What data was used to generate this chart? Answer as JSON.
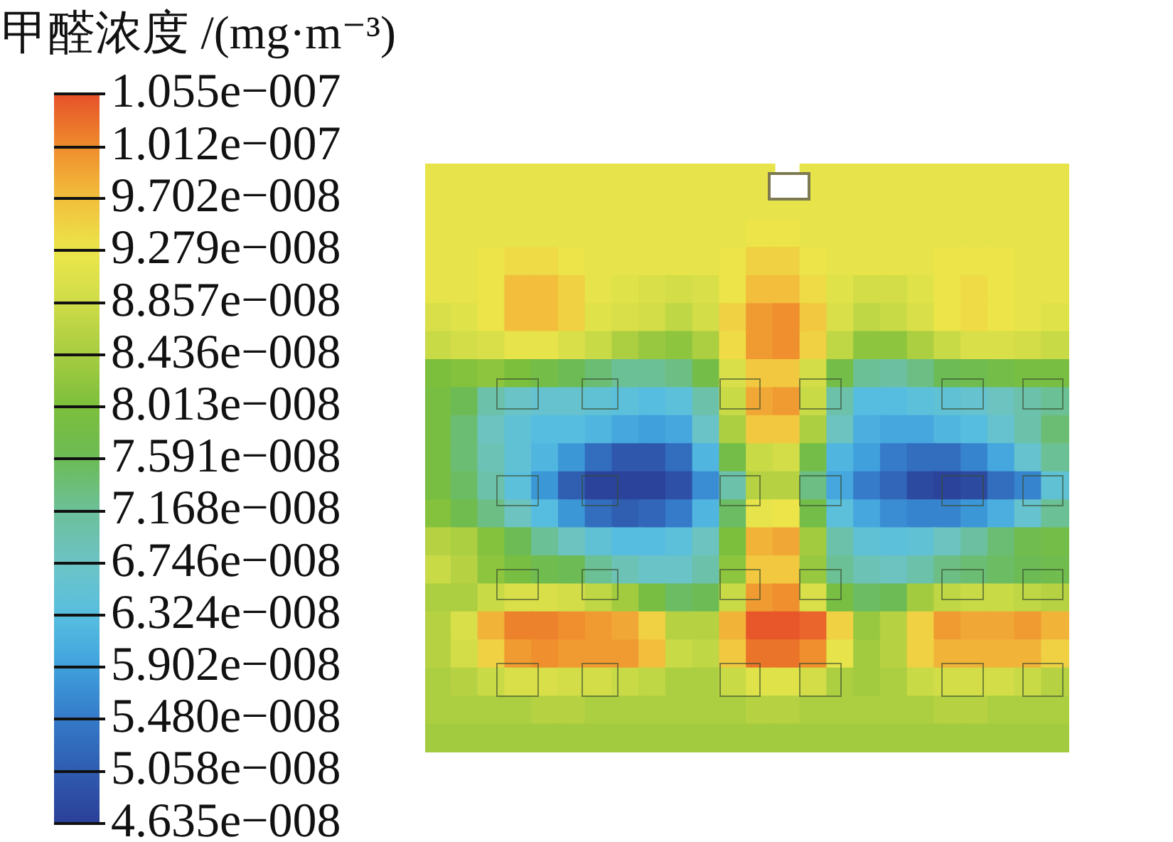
{
  "chart_data": {
    "type": "heatmap",
    "clabel": "甲醛浓度 /(mg·m⁻³)",
    "categories": [
      null,
      null,
      null,
      null,
      null,
      null,
      null,
      null,
      null,
      null,
      null,
      null,
      null,
      null,
      null,
      null,
      null,
      null,
      null,
      null,
      null,
      null,
      null,
      null
    ],
    "y_categories": [
      null,
      null,
      null,
      null,
      null,
      null,
      null,
      null,
      null,
      null,
      null,
      null,
      null,
      null,
      null,
      null,
      null,
      null,
      null,
      null,
      null
    ],
    "cells": [
      [
        9.2e-08,
        9.2e-08,
        9.2e-08,
        9.2e-08,
        9.2e-08,
        9.2e-08,
        9.2e-08,
        9.2e-08,
        9.2e-08,
        9.2e-08,
        9.2e-08,
        9.2e-08,
        9.2e-08,
        null,
        9.2e-08,
        9.2e-08,
        9.2e-08,
        9.2e-08,
        9.2e-08,
        9.2e-08,
        9.2e-08,
        9.2e-08,
        9.2e-08,
        9.2e-08
      ],
      [
        9.2e-08,
        9.2e-08,
        9.2e-08,
        9.2e-08,
        9.2e-08,
        9.2e-08,
        9.2e-08,
        9.2e-08,
        9.2e-08,
        9.2e-08,
        9.2e-08,
        9.2e-08,
        9.2e-08,
        9.2e-08,
        9.2e-08,
        9.2e-08,
        9.2e-08,
        9.2e-08,
        9.2e-08,
        9.2e-08,
        9.2e-08,
        9.2e-08,
        9.2e-08,
        9.2e-08
      ],
      [
        9.2e-08,
        9.2e-08,
        9.2e-08,
        9.2e-08,
        9.2e-08,
        9.2e-08,
        9.2e-08,
        9.2e-08,
        9.2e-08,
        9.2e-08,
        9.2e-08,
        9.2e-08,
        9.3e-08,
        9.3e-08,
        9.2e-08,
        9.2e-08,
        9.2e-08,
        9.2e-08,
        9.2e-08,
        9.2e-08,
        9.2e-08,
        9.2e-08,
        9.2e-08,
        9.2e-08
      ],
      [
        9.2e-08,
        9.2e-08,
        9.3e-08,
        9.4e-08,
        9.4e-08,
        9.3e-08,
        9.2e-08,
        9.2e-08,
        9.2e-08,
        9.2e-08,
        9.2e-08,
        9.3e-08,
        9.5e-08,
        9.5e-08,
        9.3e-08,
        9.2e-08,
        9.2e-08,
        9.2e-08,
        9.2e-08,
        9.3e-08,
        9.3e-08,
        9.3e-08,
        9.2e-08,
        9.2e-08
      ],
      [
        9.2e-08,
        9.2e-08,
        9.3e-08,
        9.7e-08,
        9.7e-08,
        9.5e-08,
        9.2e-08,
        9.1e-08,
        9e-08,
        8.9e-08,
        9e-08,
        9.3e-08,
        9.7e-08,
        9.7e-08,
        9.4e-08,
        9.1e-08,
        8.9e-08,
        8.9e-08,
        9.1e-08,
        9.3e-08,
        9.4e-08,
        9.3e-08,
        9.2e-08,
        9.2e-08
      ],
      [
        9e-08,
        9.1e-08,
        9.3e-08,
        9.7e-08,
        9.7e-08,
        9.5e-08,
        9.1e-08,
        9e-08,
        8.9e-08,
        8.7e-08,
        8.9e-08,
        9.5e-08,
        1e-07,
        1.01e-07,
        9.6e-08,
        9e-08,
        8.7e-08,
        8.8e-08,
        9e-08,
        9.3e-08,
        9.4e-08,
        9.3e-08,
        9.2e-08,
        9.1e-08
      ],
      [
        8.8e-08,
        8.9e-08,
        9e-08,
        9.2e-08,
        9.2e-08,
        9e-08,
        8.8e-08,
        8.5e-08,
        8.3e-08,
        8.2e-08,
        8.5e-08,
        9.4e-08,
        1e-07,
        1.01e-07,
        9.5e-08,
        8.7e-08,
        8.2e-08,
        8.2e-08,
        8.5e-08,
        8.8e-08,
        9e-08,
        9e-08,
        8.9e-08,
        8.8e-08
      ],
      [
        8e-08,
        8.1e-08,
        8.2e-08,
        8e-08,
        7.8e-08,
        7.6e-08,
        7.4e-08,
        7.2e-08,
        7.2e-08,
        7.3e-08,
        7.8e-08,
        9e-08,
        9.6e-08,
        9.6e-08,
        8.9e-08,
        7.8e-08,
        7.2e-08,
        7.1e-08,
        7.3e-08,
        7.6e-08,
        7.7e-08,
        7.8e-08,
        7.9e-08,
        7.9e-08
      ],
      [
        7.9e-08,
        7.6e-08,
        7e-08,
        6.7e-08,
        6.6e-08,
        6.6e-08,
        6.5e-08,
        6.4e-08,
        6.3e-08,
        6.4e-08,
        7e-08,
        8.8e-08,
        9.9e-08,
        1e-07,
        8.8e-08,
        7e-08,
        6.3e-08,
        6.3e-08,
        6.4e-08,
        6.5e-08,
        6.6e-08,
        6.8e-08,
        7e-08,
        7.2e-08
      ],
      [
        7.9e-08,
        7.4e-08,
        6.8e-08,
        6.5e-08,
        6.3e-08,
        6.3e-08,
        6.2e-08,
        6e-08,
        5.9e-08,
        6e-08,
        6.7e-08,
        8.5e-08,
        9.6e-08,
        9.6e-08,
        8.5e-08,
        6.8e-08,
        6.1e-08,
        6e-08,
        6e-08,
        6.2e-08,
        6.3e-08,
        6.6e-08,
        7e-08,
        7.4e-08
      ],
      [
        7.9e-08,
        7.4e-08,
        6.9e-08,
        6.5e-08,
        6.2e-08,
        5.8e-08,
        5.3e-08,
        5e-08,
        5e-08,
        5.3e-08,
        6.2e-08,
        7.8e-08,
        8.8e-08,
        8.9e-08,
        7.8e-08,
        6.2e-08,
        5.9e-08,
        5.5e-08,
        5.3e-08,
        5.3e-08,
        5.6e-08,
        6e-08,
        6.6e-08,
        7.2e-08
      ],
      [
        7.9e-08,
        7.5e-08,
        7e-08,
        6.4e-08,
        5.8e-08,
        5.1e-08,
        4.7e-08,
        4.7e-08,
        4.7e-08,
        4.9e-08,
        5.7e-08,
        7e-08,
        8.6e-08,
        8.6e-08,
        7.3e-08,
        6e-08,
        5.5e-08,
        5.2e-08,
        4.8e-08,
        4.7e-08,
        4.8e-08,
        5.3e-08,
        5.6e-08,
        6.5e-08
      ],
      [
        8.1e-08,
        7.7e-08,
        7.3e-08,
        6.8e-08,
        6.3e-08,
        5.8e-08,
        5.3e-08,
        5.1e-08,
        5.2e-08,
        5.5e-08,
        6.2e-08,
        7.5e-08,
        9.2e-08,
        9.3e-08,
        7.8e-08,
        6.4e-08,
        6e-08,
        5.7e-08,
        5.6e-08,
        5.6e-08,
        5.8e-08,
        6.1e-08,
        6.6e-08,
        7.2e-08
      ],
      [
        8.6e-08,
        8.5e-08,
        8.1e-08,
        7.6e-08,
        7.2e-08,
        6.8e-08,
        6.5e-08,
        6.3e-08,
        6.3e-08,
        6.4e-08,
        6.8e-08,
        8e-08,
        9.8e-08,
        9.9e-08,
        8.4e-08,
        7e-08,
        6.5e-08,
        6.4e-08,
        6.5e-08,
        6.8e-08,
        7.1e-08,
        7.4e-08,
        7.7e-08,
        7.8e-08
      ],
      [
        8.8e-08,
        8.6e-08,
        8.2e-08,
        7.9e-08,
        7.7e-08,
        7.6e-08,
        7.2e-08,
        6.9e-08,
        6.7e-08,
        6.7e-08,
        7e-08,
        8.2e-08,
        9.6e-08,
        9.6e-08,
        8.3e-08,
        7.2e-08,
        6.9e-08,
        6.8e-08,
        7e-08,
        7.3e-08,
        7.4e-08,
        7.5e-08,
        7.6e-08,
        7.7e-08
      ],
      [
        8.5e-08,
        8.5e-08,
        8.8e-08,
        9e-08,
        9e-08,
        8.9e-08,
        8.7e-08,
        8.4e-08,
        7.9e-08,
        7.5e-08,
        7.6e-08,
        8.8e-08,
        1e-07,
        1.01e-07,
        9e-08,
        7.9e-08,
        7.5e-08,
        7.6e-08,
        8.4e-08,
        8.7e-08,
        8.8e-08,
        8.8e-08,
        8.7e-08,
        8.6e-08
      ],
      [
        8.6e-08,
        9e-08,
        9.8e-08,
        1.02e-07,
        1.02e-07,
        1.01e-07,
        1e-07,
        9.9e-08,
        9.5e-08,
        8.6e-08,
        8.6e-08,
        9.8e-08,
        1.05e-07,
        1.05e-07,
        1.04e-07,
        9.5e-08,
        8.3e-08,
        8.6e-08,
        9.5e-08,
        1e-07,
        9.9e-08,
        9.9e-08,
        1e-07,
        9.8e-08
      ],
      [
        8.6e-08,
        8.9e-08,
        9.5e-08,
        1e-07,
        1.01e-07,
        1e-07,
        1e-07,
        1e-07,
        9.7e-08,
        8.8e-08,
        8.7e-08,
        9.6e-08,
        1.03e-07,
        1.03e-07,
        1.01e-07,
        9.2e-08,
        8.4e-08,
        8.6e-08,
        9.5e-08,
        9.8e-08,
        9.8e-08,
        9.8e-08,
        9.8e-08,
        9.5e-08
      ],
      [
        8.5e-08,
        8.6e-08,
        8.8e-08,
        9e-08,
        9e-08,
        8.9e-08,
        8.9e-08,
        8.8e-08,
        8.7e-08,
        8.5e-08,
        8.5e-08,
        8.8e-08,
        9.1e-08,
        9.1e-08,
        8.9e-08,
        8.5e-08,
        8.4e-08,
        8.5e-08,
        8.8e-08,
        8.9e-08,
        8.9e-08,
        8.9e-08,
        8.8e-08,
        8.6e-08
      ],
      [
        8.5e-08,
        8.5e-08,
        8.5e-08,
        8.5e-08,
        8.6e-08,
        8.6e-08,
        8.5e-08,
        8.5e-08,
        8.5e-08,
        8.5e-08,
        8.5e-08,
        8.5e-08,
        8.6e-08,
        8.6e-08,
        8.5e-08,
        8.5e-08,
        8.5e-08,
        8.5e-08,
        8.5e-08,
        8.6e-08,
        8.6e-08,
        8.5e-08,
        8.5e-08,
        8.5e-08
      ],
      [
        8.4e-08,
        8.4e-08,
        8.4e-08,
        8.4e-08,
        8.4e-08,
        8.4e-08,
        8.4e-08,
        8.4e-08,
        8.4e-08,
        8.4e-08,
        8.4e-08,
        8.4e-08,
        8.4e-08,
        8.4e-08,
        8.4e-08,
        8.4e-08,
        8.4e-08,
        8.4e-08,
        8.4e-08,
        8.4e-08,
        8.4e-08,
        8.4e-08,
        8.4e-08,
        8.4e-08
      ]
    ],
    "clim": [
      4.635e-08,
      1.055e-07
    ],
    "cticks": [
      {
        "value": 1.055e-07,
        "label": "1.055e−007"
      },
      {
        "value": 1.012e-07,
        "label": "1.012e−007"
      },
      {
        "value": 9.702e-08,
        "label": "9.702e−008"
      },
      {
        "value": 9.279e-08,
        "label": "9.279e−008"
      },
      {
        "value": 8.857e-08,
        "label": "8.857e−008"
      },
      {
        "value": 8.436e-08,
        "label": "8.436e−008"
      },
      {
        "value": 8.013e-08,
        "label": "8.013e−008"
      },
      {
        "value": 7.591e-08,
        "label": "7.591e−008"
      },
      {
        "value": 7.168e-08,
        "label": "7.168e−008"
      },
      {
        "value": 6.746e-08,
        "label": "6.746e−008"
      },
      {
        "value": 6.324e-08,
        "label": "6.324e−008"
      },
      {
        "value": 5.902e-08,
        "label": "5.902e−008"
      },
      {
        "value": 5.48e-08,
        "label": "5.480e−008"
      },
      {
        "value": 5.058e-08,
        "label": "5.058e−008"
      },
      {
        "value": 4.635e-08,
        "label": "4.635e−008"
      }
    ]
  }
}
